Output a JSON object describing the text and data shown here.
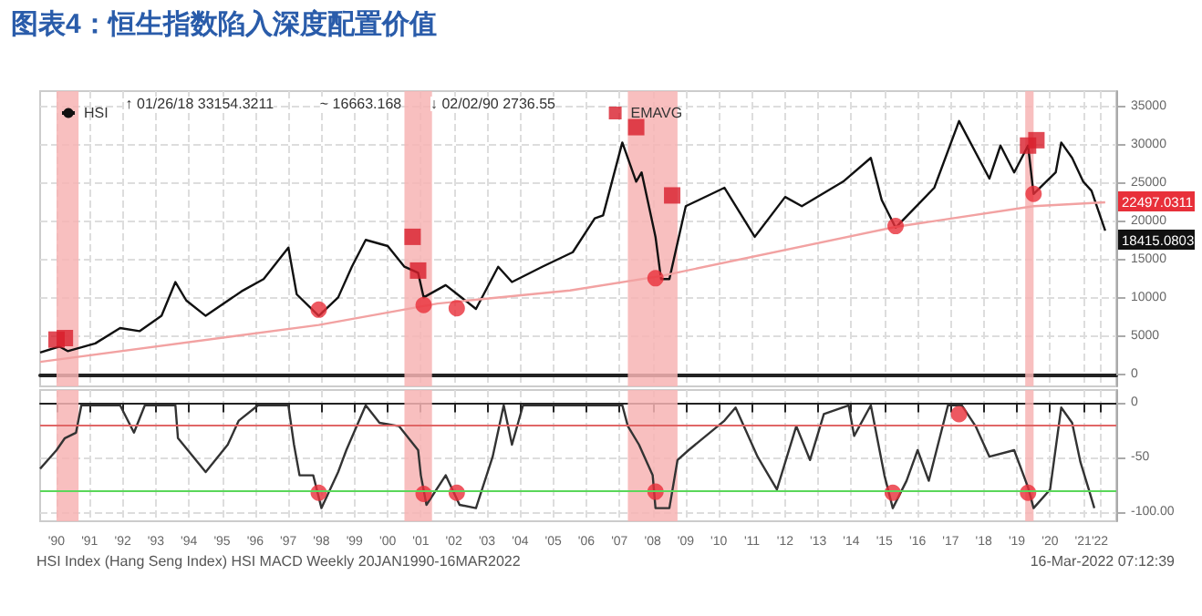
{
  "chart_data": [
    {
      "type": "line",
      "title": "图表4：恒生指数陷入深度配置价值",
      "x": [
        "1990-01",
        "1990-08",
        "1990-11",
        "1991-09",
        "1992-06",
        "1993-01",
        "1993-09",
        "1994-02",
        "1994-06",
        "1995-01",
        "1996-02",
        "1996-10",
        "1997-07",
        "1997-10",
        "1998-06",
        "1999-01",
        "1999-06",
        "1999-11",
        "2000-07",
        "2001-01",
        "2001-06",
        "2001-08",
        "2002-04",
        "2003-03",
        "2003-11",
        "2004-04",
        "2005-03",
        "2006-02",
        "2006-10",
        "2007-01",
        "2007-08",
        "2008-01",
        "2008-03",
        "2008-08",
        "2008-10",
        "2009-01",
        "2009-07",
        "2010-09",
        "2011-08",
        "2012-07",
        "2013-01",
        "2014-04",
        "2015-02",
        "2015-06",
        "2015-11",
        "2017-01",
        "2017-10",
        "2018-09",
        "2019-01",
        "2019-06",
        "2019-11",
        "2020-01",
        "2020-09",
        "2020-11",
        "2021-03",
        "2021-07",
        "2021-10",
        "2022-03"
      ],
      "series": [
        {
          "name": "HSI",
          "color": "#111111",
          "values": [
            2900,
            3700,
            3100,
            4100,
            6100,
            5700,
            7700,
            12100,
            9700,
            7700,
            10900,
            12500,
            16600,
            10500,
            7700,
            10100,
            14100,
            17600,
            16800,
            14100,
            13300,
            10100,
            11700,
            8600,
            14100,
            12100,
            14100,
            16000,
            20400,
            20800,
            30300,
            25200,
            26400,
            18000,
            12500,
            12500,
            22000,
            24400,
            18000,
            23200,
            22000,
            25200,
            28300,
            22800,
            19200,
            24400,
            33100,
            25600,
            29900,
            26400,
            29900,
            23600,
            26400,
            30300,
            28300,
            25200,
            24000,
            18800
          ]
        },
        {
          "color": "#f2a2a2",
          "x": [
            "1990-01",
            "1998-06",
            "2002-01",
            "2006-01",
            "2008-10",
            "2015-11",
            "2020-01",
            "2022-03"
          ],
          "values": [
            1700,
            6500,
            9300,
            11000,
            12900,
            19300,
            22000,
            22500
          ]
        },
        {
          "type": "scatter",
          "marker": "circle",
          "color": "#e8303a",
          "x": [
            "1998-06",
            "2001-08",
            "2002-08",
            "2008-08",
            "2015-11",
            "2020-01"
          ],
          "values": [
            8500,
            9100,
            8700,
            12600,
            19400,
            23600
          ]
        },
        {
          "name": "EMAVG",
          "type": "scatter",
          "marker": "square",
          "color": "#d81e2c",
          "x": [
            "1990-07",
            "1990-10",
            "2001-04",
            "2001-06",
            "2008-01",
            "2009-02",
            "2019-11",
            "2020-02"
          ],
          "values": [
            4600,
            4800,
            18000,
            13600,
            32300,
            23400,
            29900,
            30600
          ]
        }
      ],
      "xlim": [
        "1990-01",
        "2022-07"
      ],
      "xticks": [
        {
          "value": "1990-07",
          "label": null
        },
        {
          "value": "1991-07",
          "label": null
        },
        {
          "value": "1992-07",
          "label": null
        },
        {
          "value": "1993-07",
          "label": null
        },
        {
          "value": "1994-07",
          "label": null
        },
        {
          "value": "1995-07",
          "label": null
        },
        {
          "value": "1996-07",
          "label": null
        },
        {
          "value": "1997-07",
          "label": null
        },
        {
          "value": "1998-07",
          "label": null
        },
        {
          "value": "1999-07",
          "label": null
        },
        {
          "value": "2000-07",
          "label": null
        },
        {
          "value": "2001-07",
          "label": null
        },
        {
          "value": "2002-07",
          "label": null
        },
        {
          "value": "2003-07",
          "label": null
        },
        {
          "value": "2004-07",
          "label": null
        },
        {
          "value": "2005-07",
          "label": null
        },
        {
          "value": "2006-07",
          "label": null
        },
        {
          "value": "2007-07",
          "label": null
        },
        {
          "value": "2008-07",
          "label": null
        },
        {
          "value": "2009-07",
          "label": null
        },
        {
          "value": "2010-07",
          "label": null
        },
        {
          "value": "2011-07",
          "label": null
        },
        {
          "value": "2012-07",
          "label": null
        },
        {
          "value": "2013-07",
          "label": null
        },
        {
          "value": "2014-07",
          "label": null
        },
        {
          "value": "2015-07",
          "label": null
        },
        {
          "value": "2016-07",
          "label": null
        },
        {
          "value": "2017-07",
          "label": null
        },
        {
          "value": "2018-07",
          "label": null
        },
        {
          "value": "2019-07",
          "label": null
        },
        {
          "value": "2020-07",
          "label": null
        },
        {
          "value": "2021-07",
          "label": null
        },
        {
          "value": "2022-01",
          "label": null
        }
      ],
      "ylim": [
        -1500,
        37000
      ],
      "yticks": [
        0,
        5000,
        10000,
        15000,
        20000,
        25000,
        30000,
        35000
      ],
      "tick_labels": "y",
      "grid": true,
      "legend": "top left",
      "bands": [
        {
          "axis": "x",
          "from": "1990-07",
          "to": "1991-03",
          "color": "#f7b4b4"
        },
        {
          "axis": "x",
          "from": "2001-01",
          "to": "2001-11",
          "color": "#f7b4b4"
        },
        {
          "axis": "x",
          "from": "2007-10",
          "to": "2009-04",
          "color": "#f7b4b4"
        },
        {
          "axis": "x",
          "from": "2019-10",
          "to": "2020-01",
          "color": "#f7b4b4"
        }
      ],
      "annotations": [
        "↑ 01/26/18 33154.3211",
        "~ 16663.168",
        "↓ 02/02/90 2736.55",
        "22497.0311",
        "18415.0803"
      ]
    },
    {
      "type": "line",
      "x": [
        "1990-01",
        "1990-07",
        "1990-10",
        "1991-02",
        "1991-04",
        "1992-06",
        "1992-11",
        "1993-03",
        "1994-02",
        "1994-03",
        "1995-01",
        "1995-09",
        "1996-01",
        "1996-08",
        "1997-07",
        "1997-09",
        "1997-11",
        "1998-04",
        "1998-07",
        "1999-01",
        "1999-04",
        "1999-11",
        "2000-04",
        "2000-11",
        "2001-06",
        "2001-07",
        "2001-09",
        "2002-04",
        "2002-09",
        "2003-03",
        "2003-09",
        "2004-01",
        "2004-04",
        "2004-08",
        "2006-10",
        "2007-08",
        "2007-10",
        "2008-02",
        "2008-07",
        "2008-08",
        "2009-01",
        "2009-04",
        "2009-08",
        "2010-09",
        "2011-01",
        "2011-09",
        "2012-04",
        "2012-11",
        "2013-04",
        "2013-09",
        "2014-06",
        "2014-08",
        "2015-02",
        "2015-07",
        "2015-10",
        "2016-03",
        "2016-07",
        "2016-11",
        "2017-06",
        "2017-11",
        "2018-04",
        "2018-09",
        "2019-06",
        "2019-11",
        "2020-01",
        "2020-07",
        "2020-11",
        "2021-03",
        "2021-06",
        "2021-09",
        "2021-11"
      ],
      "series": [
        {
          "color": "#333333",
          "values": [
            -60,
            -43,
            -32,
            -27,
            -2,
            -2,
            -27,
            -2,
            -2,
            -32,
            -63,
            -38,
            -16,
            -2,
            -2,
            -38,
            -66,
            -66,
            -96,
            -63,
            -43,
            -2,
            -18,
            -21,
            -43,
            -66,
            -93,
            -66,
            -93,
            -96,
            -49,
            -2,
            -38,
            -2,
            -2,
            -2,
            -21,
            -38,
            -66,
            -96,
            -96,
            -52,
            -43,
            -16,
            -4,
            -49,
            -79,
            -21,
            -52,
            -10,
            -2,
            -30,
            -2,
            -66,
            -96,
            -71,
            -43,
            -71,
            -2,
            -2,
            -21,
            -49,
            -43,
            -77,
            -96,
            -79,
            -4,
            -18,
            -54,
            -79,
            -96
          ]
        },
        {
          "type": "scatter",
          "marker": "circle",
          "color": "#e8303a",
          "x": [
            "1998-06",
            "2001-08",
            "2002-08",
            "2008-08",
            "2015-10",
            "2017-10",
            "2019-11"
          ],
          "values": [
            -82,
            -83,
            -82,
            -81,
            -82,
            -10,
            -82
          ]
        }
      ],
      "xlim": [
        "1990-01",
        "2022-07"
      ],
      "xticks": [
        {
          "value": "1990-07",
          "label": "'90"
        },
        {
          "value": "1991-07",
          "label": "'91"
        },
        {
          "value": "1992-07",
          "label": "'92"
        },
        {
          "value": "1993-07",
          "label": "'93"
        },
        {
          "value": "1994-07",
          "label": "'94"
        },
        {
          "value": "1995-07",
          "label": "'95"
        },
        {
          "value": "1996-07",
          "label": "'96"
        },
        {
          "value": "1997-07",
          "label": "'97"
        },
        {
          "value": "1998-07",
          "label": "'98"
        },
        {
          "value": "1999-07",
          "label": "'99"
        },
        {
          "value": "2000-07",
          "label": "'00"
        },
        {
          "value": "2001-07",
          "label": "'01"
        },
        {
          "value": "2002-07",
          "label": "'02"
        },
        {
          "value": "2003-07",
          "label": "'03"
        },
        {
          "value": "2004-07",
          "label": "'04"
        },
        {
          "value": "2005-07",
          "label": "'05"
        },
        {
          "value": "2006-07",
          "label": "'06"
        },
        {
          "value": "2007-07",
          "label": "'07"
        },
        {
          "value": "2008-07",
          "label": "'08"
        },
        {
          "value": "2009-07",
          "label": "'09"
        },
        {
          "value": "2010-07",
          "label": "'10"
        },
        {
          "value": "2011-07",
          "label": "'11"
        },
        {
          "value": "2012-07",
          "label": "'12"
        },
        {
          "value": "2013-07",
          "label": "'13"
        },
        {
          "value": "2014-07",
          "label": "'14"
        },
        {
          "value": "2015-07",
          "label": "'15"
        },
        {
          "value": "2016-07",
          "label": "'16"
        },
        {
          "value": "2017-07",
          "label": "'17"
        },
        {
          "value": "2018-07",
          "label": "'18"
        },
        {
          "value": "2019-07",
          "label": "'19"
        },
        {
          "value": "2020-07",
          "label": "'20"
        },
        {
          "value": "2021-07",
          "label": "'21"
        },
        {
          "value": "2022-01",
          "label": "'22"
        }
      ],
      "ylim": [
        -108,
        12
      ],
      "yticks": [
        0,
        -50,
        {
          "value": -100,
          "label": "-100.00"
        }
      ],
      "grid": true,
      "ref_lines": [
        {
          "axis": "y",
          "value": -20,
          "color": "#e06666"
        },
        {
          "axis": "y",
          "value": -80,
          "color": "#5ad75a"
        }
      ],
      "bands": [
        {
          "axis": "x",
          "from": "1990-07",
          "to": "1991-03",
          "color": "#f7b4b4"
        },
        {
          "axis": "x",
          "from": "2001-01",
          "to": "2001-11",
          "color": "#f7b4b4"
        },
        {
          "axis": "x",
          "from": "2007-10",
          "to": "2009-04",
          "color": "#f7b4b4"
        },
        {
          "axis": "x",
          "from": "2019-10",
          "to": "2020-01",
          "color": "#f7b4b4"
        }
      ],
      "annotations": [
        "HSI Index (Hang Seng Index) HSI MACD Weekly 20JAN1990-16MAR2022",
        "16-Mar-2022 07:12:39"
      ]
    }
  ]
}
